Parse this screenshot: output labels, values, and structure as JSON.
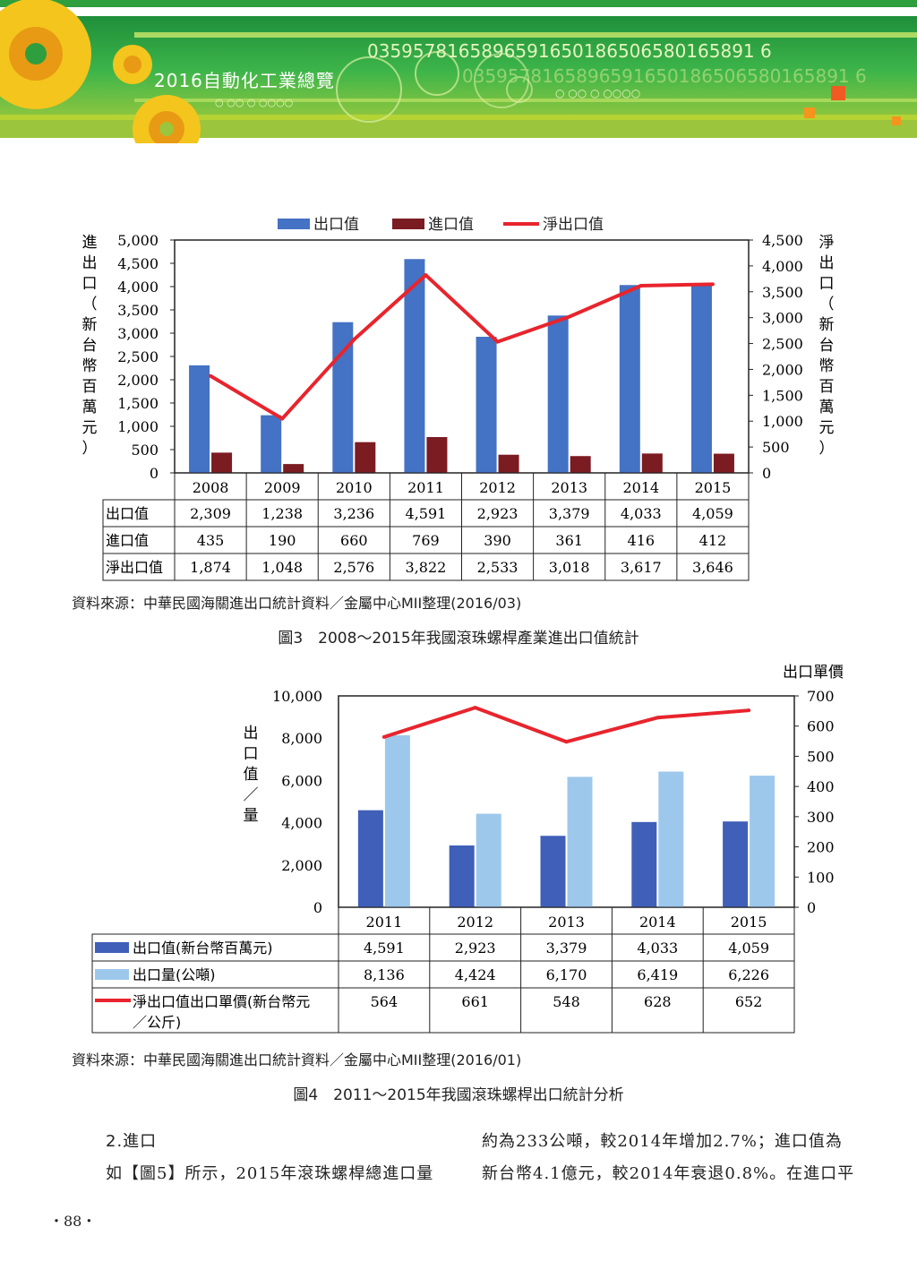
{
  "header": {
    "book_title": "2016自動化工業總覽",
    "number_strip_1": "0359578165896591650186506580165891 6",
    "number_strip_2": "0359578165896591650186506580165891 6"
  },
  "figure3": {
    "legend": [
      "出口值",
      "進口值",
      "淨出口值"
    ],
    "left_axis_label": "進出口（新台幣百萬元）",
    "right_axis_label": "淨出口（新台幣百萬元）",
    "row_labels": [
      "出口值",
      "進口值",
      "淨出口值"
    ],
    "source": "資料來源：中華民國海關進出口統計資料／金屬中心MII整理(2016/03)",
    "caption": "圖3　2008～2015年我國滾珠螺桿產業進出口值統計"
  },
  "figure4": {
    "left_axis_label": "出口值／量",
    "right_axis_label": "出口單價",
    "row_labels": [
      "出口值(新台幣百萬元)",
      "出口量(公噸)",
      "淨出口值出口單價(新台幣元／公斤)"
    ],
    "source": "資料來源：中華民國海關進出口統計資料／金屬中心MII整理(2016/01)",
    "caption": "圖4　2011～2015年我國滾珠螺桿出口統計分析"
  },
  "body": {
    "heading": "2.進口",
    "left_line": "如【圖5】所示，2015年滾珠螺桿總進口量",
    "right_line_1": "約為233公噸，較2014年增加2.7%；進口值為",
    "right_line_2": "新台幣4.1億元，較2014年衰退0.8%。在進口平"
  },
  "page_number": "・88・",
  "chart_data": [
    {
      "type": "bar",
      "categories": [
        "2008",
        "2009",
        "2010",
        "2011",
        "2012",
        "2013",
        "2014",
        "2015"
      ],
      "series": [
        {
          "name": "出口值",
          "values": [
            2309,
            1238,
            3236,
            4591,
            2923,
            3379,
            4033,
            4059
          ],
          "axis": "left",
          "color": "#4472C4"
        },
        {
          "name": "進口值",
          "values": [
            435,
            190,
            660,
            769,
            390,
            361,
            416,
            412
          ],
          "axis": "left",
          "color": "#7B1C22"
        },
        {
          "name": "淨出口值",
          "values": [
            1874,
            1048,
            2576,
            3822,
            2533,
            3018,
            3617,
            3646
          ],
          "axis": "right",
          "kind": "line",
          "color": "#E8242D"
        }
      ],
      "display_values": [
        [
          "2,309",
          "1,238",
          "3,236",
          "4,591",
          "2,923",
          "3,379",
          "4,033",
          "4,059"
        ],
        [
          "435",
          "190",
          "660",
          "769",
          "390",
          "361",
          "416",
          "412"
        ],
        [
          "1,874",
          "1,048",
          "2,576",
          "3,822",
          "2,533",
          "3,018",
          "3,617",
          "3,646"
        ]
      ],
      "ylim_left": [
        0,
        5000
      ],
      "yticks_left": [
        "0",
        "500",
        "1,000",
        "1,500",
        "2,000",
        "2,500",
        "3,000",
        "3,500",
        "4,000",
        "4,500",
        "5,000"
      ],
      "ylim_right": [
        0,
        4500
      ],
      "yticks_right": [
        "0",
        "500",
        "1,000",
        "1,500",
        "2,000",
        "2,500",
        "3,000",
        "3,500",
        "4,000",
        "4,500"
      ],
      "legend": "top"
    },
    {
      "type": "bar",
      "categories": [
        "2011",
        "2012",
        "2013",
        "2014",
        "2015"
      ],
      "series": [
        {
          "name": "出口值(新台幣百萬元)",
          "values": [
            4591,
            2923,
            3379,
            4033,
            4059
          ],
          "axis": "left",
          "color": "#3F5FB8"
        },
        {
          "name": "出口量(公噸)",
          "values": [
            8136,
            4424,
            6170,
            6419,
            6226
          ],
          "axis": "left",
          "color": "#9DC8EC"
        },
        {
          "name": "淨出口值出口單價(新台幣元／公斤)",
          "values": [
            564,
            661,
            548,
            628,
            652
          ],
          "axis": "right",
          "kind": "line",
          "color": "#E8242D"
        }
      ],
      "display_values": [
        [
          "4,591",
          "2,923",
          "3,379",
          "4,033",
          "4,059"
        ],
        [
          "8,136",
          "4,424",
          "6,170",
          "6,419",
          "6,226"
        ],
        [
          "564",
          "661",
          "548",
          "628",
          "652"
        ]
      ],
      "ylim_left": [
        0,
        10000
      ],
      "yticks_left": [
        "0",
        "2,000",
        "4,000",
        "6,000",
        "8,000",
        "10,000"
      ],
      "ylim_right": [
        0,
        700
      ],
      "yticks_right": [
        "0",
        "100",
        "200",
        "300",
        "400",
        "500",
        "600",
        "700"
      ],
      "legend": "table"
    }
  ]
}
